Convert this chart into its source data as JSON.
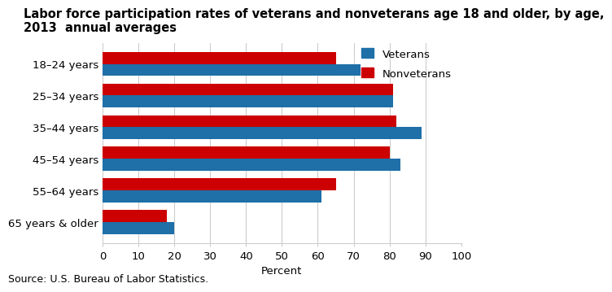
{
  "title_line1": "Labor force participation rates of veterans and nonveterans age 18 and older, by age,",
  "title_line2": "2013  annual averages",
  "categories": [
    "18–24 years",
    "25–34 years",
    "35–44 years",
    "45–54 years",
    "55–64 years",
    "65 years & older"
  ],
  "veterans": [
    72,
    81,
    89,
    83,
    61,
    20
  ],
  "nonveterans": [
    65,
    81,
    82,
    80,
    65,
    18
  ],
  "veteran_color": "#1F6FA8",
  "nonveteran_color": "#CC0000",
  "xlabel": "Percent",
  "xlim": [
    0,
    100
  ],
  "xticks": [
    0,
    10,
    20,
    30,
    40,
    50,
    60,
    70,
    80,
    90,
    100
  ],
  "source": "Source: U.S. Bureau of Labor Statistics.",
  "legend_labels": [
    "Veterans",
    "Nonveterans"
  ],
  "background_color": "#ffffff",
  "bar_height": 0.38,
  "title_fontsize": 10.5,
  "axis_fontsize": 9.5,
  "legend_fontsize": 9.5,
  "source_fontsize": 9
}
